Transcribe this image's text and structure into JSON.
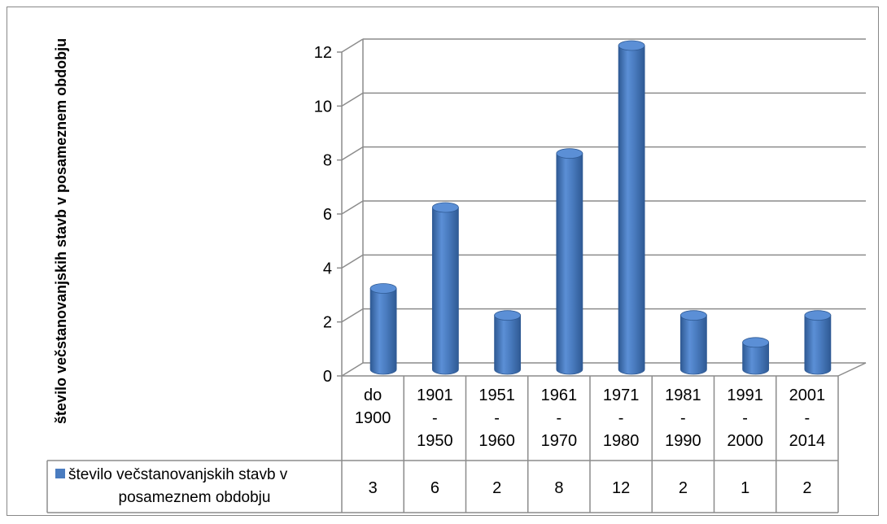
{
  "chart_data": {
    "type": "bar",
    "ylabel": "število večstanovanjskih stavb v posameznem obdobju",
    "xlabel": "",
    "ylim": [
      0,
      12
    ],
    "yticks": [
      "0",
      "2",
      "4",
      "6",
      "8",
      "10",
      "12"
    ],
    "categories": [
      [
        "do",
        "1900"
      ],
      [
        "1901",
        "-",
        "1950"
      ],
      [
        "1951",
        "-",
        "1960"
      ],
      [
        "1961",
        "-",
        "1970"
      ],
      [
        "1971",
        "-",
        "1980"
      ],
      [
        "1981",
        "-",
        "1990"
      ],
      [
        "1991",
        "-",
        "2000"
      ],
      [
        "2001",
        "-",
        "2014"
      ]
    ],
    "series": [
      {
        "name": "število večstanovanjskih stavb v posameznem obdobju",
        "values": [
          3,
          6,
          2,
          8,
          12,
          2,
          1,
          2
        ]
      }
    ],
    "data_table": true,
    "grid": true,
    "bar_style": "3d-cylinder",
    "colors": {
      "bar": "#4a7cc0",
      "bar_dark": "#2f5a94",
      "bar_top": "#5b8fd6",
      "grid": "#8c8c8c"
    }
  }
}
